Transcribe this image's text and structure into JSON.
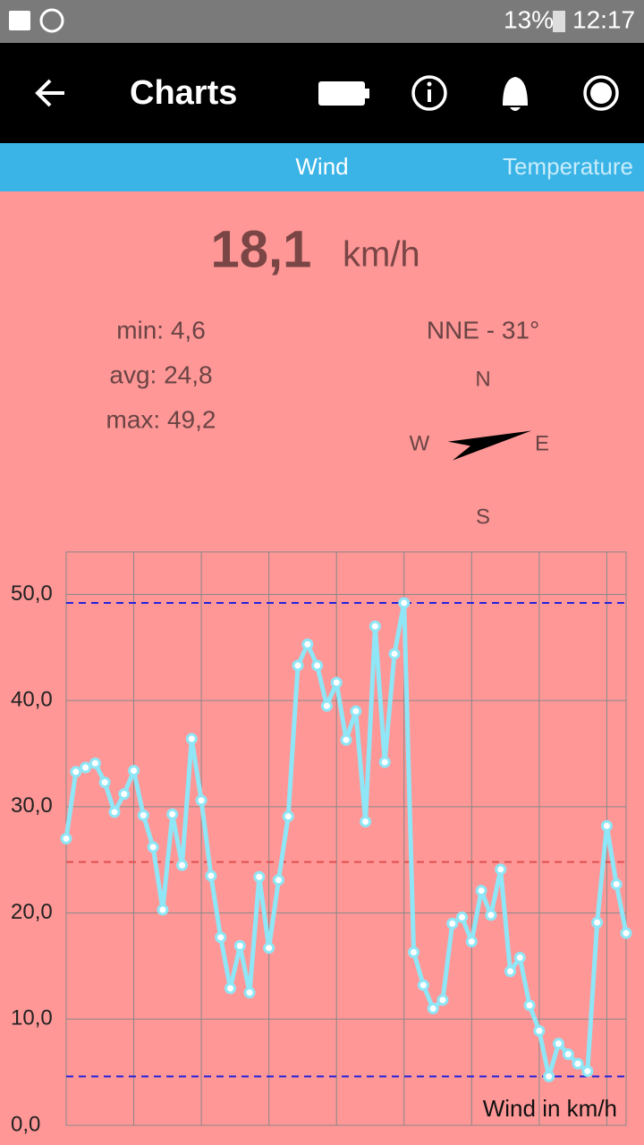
{
  "status_bar": {
    "battery": "13%",
    "time": "12:17"
  },
  "app_bar": {
    "title": "Charts"
  },
  "tabs": [
    "Wind",
    "Temperature"
  ],
  "current": {
    "value": "18,1",
    "unit": "km/h"
  },
  "stats": {
    "min": "min: 4,6",
    "avg": "avg: 24,8",
    "max": "max: 49,2"
  },
  "direction": {
    "label": "NNE - 31°",
    "heading": 31,
    "n": "N",
    "e": "E",
    "s": "S",
    "w": "W"
  },
  "chart_data": {
    "type": "line",
    "legend": "Wind in km/h",
    "categories": [
      null,
      null,
      null,
      null,
      null,
      null,
      null,
      null,
      null,
      null,
      null,
      null,
      null,
      null,
      null,
      null,
      null,
      null,
      null,
      null,
      null,
      null,
      null,
      null,
      null,
      null,
      null,
      null,
      null,
      null,
      null,
      null,
      null,
      null,
      null,
      null,
      null,
      null,
      null,
      null,
      null,
      null,
      null,
      null,
      null,
      null,
      null,
      null,
      null,
      null,
      null,
      null,
      null,
      null,
      null,
      null,
      null,
      null,
      null
    ],
    "series": [
      {
        "name": "Wind in km/h",
        "color": "#8ee6f6",
        "values": [
          27.0,
          33.3,
          33.7,
          34.1,
          32.3,
          29.5,
          31.2,
          33.4,
          29.2,
          26.2,
          20.3,
          29.3,
          24.5,
          36.4,
          30.6,
          23.5,
          17.7,
          12.9,
          16.9,
          12.5,
          23.4,
          16.7,
          23.1,
          29.1,
          43.3,
          45.3,
          43.3,
          39.5,
          41.7,
          36.3,
          39.0,
          28.6,
          47.0,
          34.2,
          44.4,
          49.2,
          16.3,
          13.2,
          11.0,
          11.8,
          19.0,
          19.6,
          17.3,
          22.1,
          19.8,
          24.1,
          14.5,
          15.8,
          11.3,
          8.9,
          4.6,
          7.7,
          6.7,
          5.8,
          5.1,
          19.1,
          28.2,
          22.7,
          18.1
        ]
      }
    ],
    "reference_lines": [
      {
        "value": 49.2,
        "color": "#2222dd"
      },
      {
        "value": 24.8,
        "color": "#e05050"
      },
      {
        "value": 4.6,
        "color": "#2222dd"
      }
    ],
    "ylim": [
      0,
      54
    ],
    "yticks": [
      {
        "value": 0,
        "label": "0,0"
      },
      {
        "value": 10,
        "label": "10,0"
      },
      {
        "value": 20,
        "label": "20,0"
      },
      {
        "value": 30,
        "label": "30,0"
      },
      {
        "value": 40,
        "label": "40,0"
      },
      {
        "value": 50,
        "label": "50,0"
      }
    ],
    "grid": true
  }
}
